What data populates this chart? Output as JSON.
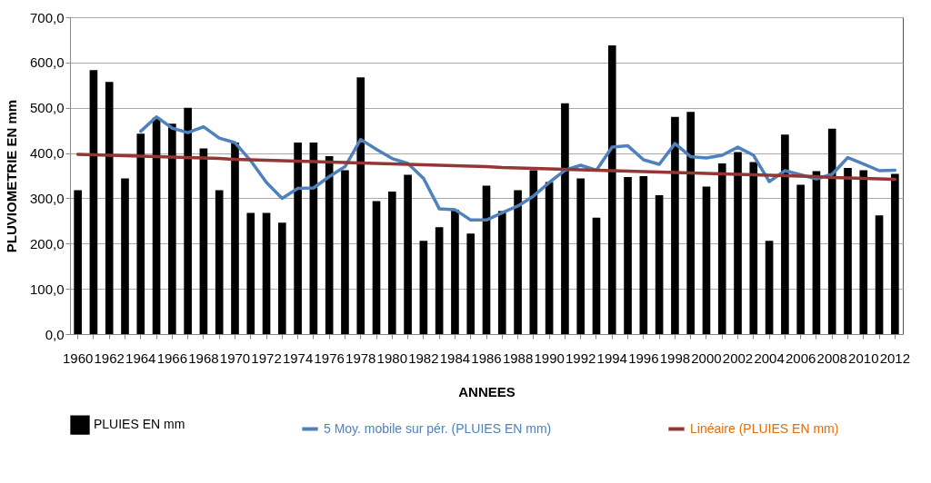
{
  "chart_data": {
    "type": "bar",
    "xlabel": "ANNEES",
    "ylabel": "PLUVIOMETRIE EN mm",
    "categories": [
      "1960",
      null,
      "1962",
      null,
      "1964",
      null,
      "1966",
      null,
      "1968",
      null,
      "1970",
      null,
      "1972",
      null,
      "1974",
      null,
      "1976",
      null,
      "1978",
      null,
      "1980",
      null,
      "1982",
      null,
      "1984",
      null,
      "1986",
      null,
      "1988",
      null,
      "1990",
      null,
      "1992",
      null,
      "1994",
      null,
      "1996",
      null,
      "1998",
      null,
      "2000",
      null,
      "2002",
      null,
      "2004",
      null,
      "2006",
      null,
      "2008",
      null,
      "2010",
      null,
      "2012"
    ],
    "series": [
      {
        "name": "PLUIES EN mm",
        "color": "#000000",
        "values": [
          318,
          583,
          557,
          344,
          443,
          478,
          465,
          500,
          410,
          318,
          423,
          268,
          268,
          246,
          423,
          423,
          393,
          362,
          567,
          294,
          315,
          352,
          206,
          236,
          275,
          222,
          328,
          272,
          318,
          362,
          336,
          510,
          344,
          257,
          638,
          347,
          349,
          307,
          480,
          491,
          326,
          377,
          402,
          380,
          206,
          441,
          330,
          360,
          454,
          367,
          362,
          262,
          354
        ]
      },
      {
        "name": "5 Moy. mobile sur pér. (PLUIES EN mm)",
        "type": "line",
        "color": "#4f81bd",
        "values": [
          null,
          null,
          null,
          null,
          448,
          480,
          455,
          445,
          458,
          433,
          423,
          383,
          335,
          300,
          322,
          323,
          348,
          370,
          430,
          408,
          388,
          377,
          344,
          277,
          275,
          252,
          252,
          268,
          283,
          305,
          335,
          362,
          373,
          362,
          413,
          416,
          385,
          375,
          421,
          392,
          389,
          395,
          413,
          395,
          337,
          361,
          352,
          343,
          353,
          390,
          376,
          361,
          362
        ]
      },
      {
        "name": "Linéaire (PLUIES EN mm)",
        "type": "line",
        "color": "#943634",
        "values": [
          397,
          396,
          395,
          394,
          393,
          392,
          391,
          390,
          389,
          388,
          386,
          385,
          384,
          383,
          382,
          381,
          380,
          379,
          378,
          377,
          376,
          375,
          374,
          373,
          372,
          371,
          370,
          368,
          367,
          366,
          365,
          364,
          363,
          362,
          361,
          360,
          359,
          358,
          357,
          356,
          355,
          354,
          353,
          352,
          351,
          350,
          349,
          348,
          346,
          345,
          344,
          343,
          342
        ]
      }
    ],
    "ylim": [
      0,
      700
    ],
    "yticks": [
      {
        "value": 0,
        "label": "0,0"
      },
      {
        "value": 100,
        "label": "100,0"
      },
      {
        "value": 200,
        "label": "200,0"
      },
      {
        "value": 300,
        "label": "300,0"
      },
      {
        "value": 400,
        "label": "400,0"
      },
      {
        "value": 500,
        "label": "500,0"
      },
      {
        "value": 600,
        "label": "600,0"
      },
      {
        "value": 700,
        "label": "700,0"
      }
    ],
    "grid": "y",
    "legend": "bottom"
  }
}
